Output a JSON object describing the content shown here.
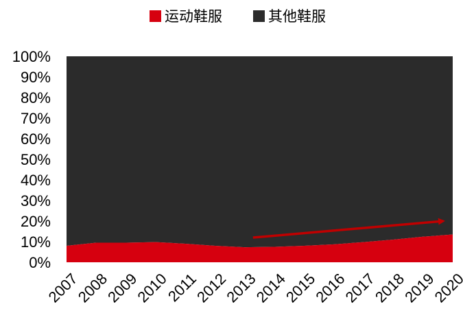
{
  "chart_data": {
    "type": "area",
    "stacked": "percent",
    "categories": [
      "2007",
      "2008",
      "2009",
      "2010",
      "2011",
      "2012",
      "2013",
      "2014",
      "2015",
      "2016",
      "2017",
      "2018",
      "2019",
      "2020"
    ],
    "series": [
      {
        "name": "运动鞋服",
        "color": "#d6000f",
        "values": [
          8.0,
          9.5,
          9.5,
          9.8,
          9.0,
          8.0,
          7.3,
          7.5,
          8.0,
          8.7,
          9.8,
          11.0,
          12.4,
          13.5
        ]
      },
      {
        "name": "其他鞋服",
        "color": "#2b2b2b",
        "values": [
          92.0,
          90.5,
          90.5,
          90.2,
          91.0,
          92.0,
          92.7,
          92.5,
          92.0,
          91.3,
          90.2,
          89.0,
          87.6,
          86.5
        ]
      }
    ],
    "yticks": [
      "0%",
      "10%",
      "20%",
      "30%",
      "40%",
      "50%",
      "60%",
      "70%",
      "80%",
      "90%",
      "100%"
    ],
    "ylim": [
      0,
      100
    ],
    "legend_position": "top",
    "annotation": {
      "type": "arrow",
      "color": "#c00000",
      "from": {
        "x": "2013",
        "y": 12
      },
      "to": {
        "x": "2020",
        "y": 20
      }
    }
  }
}
